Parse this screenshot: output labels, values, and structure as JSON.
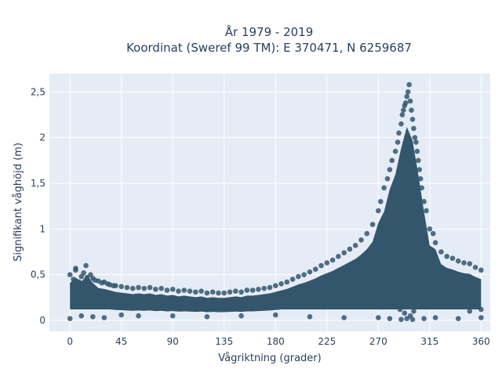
{
  "chart_data": {
    "type": "scatter",
    "title_lines": [
      "År 1979 - 2019",
      "Koordinat (Sweref 99 TM): E 370471, N 6259687"
    ],
    "xlabel": "Vågriktning (grader)",
    "ylabel": "Signifikant våghöjd (m)",
    "xlim": [
      -18,
      368
    ],
    "ylim": [
      -0.12,
      2.7
    ],
    "x_ticks": [
      0,
      45,
      90,
      135,
      180,
      225,
      270,
      315,
      360
    ],
    "x_tick_labels": [
      "0",
      "45",
      "90",
      "135",
      "180",
      "225",
      "270",
      "315",
      "360"
    ],
    "y_ticks": [
      0,
      0.5,
      1,
      1.5,
      2,
      2.5
    ],
    "y_tick_labels": [
      "0",
      "0,5",
      "1",
      "1,5",
      "2",
      "2,5"
    ],
    "grid": true,
    "colors": {
      "points": "#34566d",
      "plot_bg": "#e5ecf6",
      "grid": "#ffffff",
      "text": "#2a3f5f"
    },
    "series": [
      {
        "x": [
          0,
          3,
          5,
          8,
          10,
          12,
          15,
          18,
          20,
          22,
          25,
          28,
          30,
          33,
          35,
          38,
          40,
          45,
          50,
          55,
          60,
          65,
          70,
          75,
          80,
          85,
          90,
          95,
          100,
          105,
          110,
          115,
          120,
          125,
          130,
          135,
          140,
          145,
          150,
          155,
          160,
          165,
          170,
          175,
          180,
          185,
          190,
          195,
          200,
          205,
          210,
          215,
          220,
          225,
          230,
          235,
          240,
          245,
          250,
          255,
          260,
          265,
          270,
          272,
          275,
          278,
          280,
          282,
          285,
          287,
          288,
          290,
          291,
          292,
          293,
          294,
          295,
          296,
          297,
          298,
          299,
          300,
          301,
          302,
          303,
          304,
          305,
          306,
          307,
          308,
          310,
          312,
          315,
          318,
          320,
          325,
          330,
          335,
          340,
          345,
          350,
          355,
          360,
          0,
          10,
          20,
          30,
          45,
          60,
          90,
          120,
          150,
          180,
          210,
          240,
          270,
          280,
          290,
          295,
          300,
          310,
          320,
          340,
          360,
          289,
          293,
          296,
          298,
          301,
          305,
          274,
          280,
          295,
          300,
          315,
          330,
          350,
          360,
          14,
          5
        ],
        "y": [
          0.5,
          0.45,
          0.55,
          0.42,
          0.48,
          0.52,
          0.47,
          0.5,
          0.46,
          0.44,
          0.43,
          0.41,
          0.42,
          0.4,
          0.39,
          0.38,
          0.38,
          0.37,
          0.36,
          0.35,
          0.36,
          0.35,
          0.36,
          0.34,
          0.35,
          0.33,
          0.34,
          0.32,
          0.33,
          0.32,
          0.31,
          0.32,
          0.3,
          0.31,
          0.3,
          0.3,
          0.31,
          0.32,
          0.31,
          0.33,
          0.33,
          0.34,
          0.35,
          0.36,
          0.38,
          0.4,
          0.42,
          0.45,
          0.48,
          0.5,
          0.53,
          0.56,
          0.6,
          0.63,
          0.66,
          0.7,
          0.74,
          0.78,
          0.82,
          0.88,
          0.95,
          1.05,
          1.2,
          1.3,
          1.45,
          1.55,
          1.65,
          1.75,
          1.85,
          1.95,
          2.05,
          2.15,
          2.25,
          2.3,
          2.35,
          2.38,
          2.45,
          2.5,
          2.58,
          2.4,
          2.3,
          2.2,
          2.1,
          2.0,
          1.95,
          1.85,
          1.75,
          1.65,
          1.55,
          1.45,
          1.3,
          1.2,
          1.0,
          0.95,
          0.85,
          0.75,
          0.7,
          0.68,
          0.65,
          0.63,
          0.62,
          0.58,
          0.55,
          0.02,
          0.05,
          0.04,
          0.03,
          0.06,
          0.05,
          0.05,
          0.04,
          0.05,
          0.06,
          0.04,
          0.03,
          0.03,
          0.02,
          0.01,
          0.02,
          0.01,
          0.02,
          0.03,
          0.02,
          0.03,
          0.12,
          0.08,
          0.15,
          0.05,
          0.1,
          0.2,
          0.25,
          0.3,
          0.35,
          0.4,
          0.2,
          0.15,
          0.1,
          0.12,
          0.6,
          0.57
        ]
      }
    ]
  }
}
